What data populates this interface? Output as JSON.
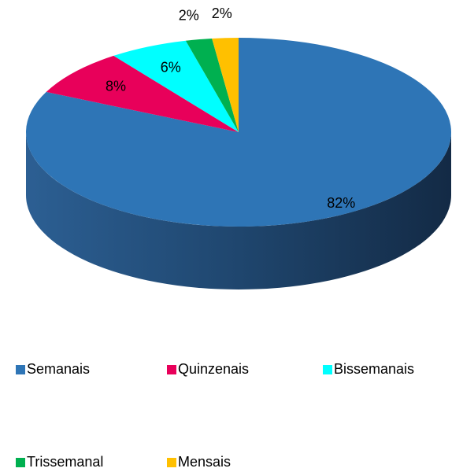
{
  "chart_data": {
    "type": "pie",
    "categories": [
      "Semanais",
      "Quinzenais",
      "Bissemanais",
      "Trissemanal",
      "Mensais"
    ],
    "values": [
      82,
      8,
      6,
      2,
      2
    ],
    "value_labels": [
      "82%",
      "8%",
      "6%",
      "2%",
      "2%"
    ],
    "colors": [
      "#2e75b6",
      "#e8005a",
      "#00ffff",
      "#00b050",
      "#ffc000"
    ],
    "legend": "bottom"
  }
}
